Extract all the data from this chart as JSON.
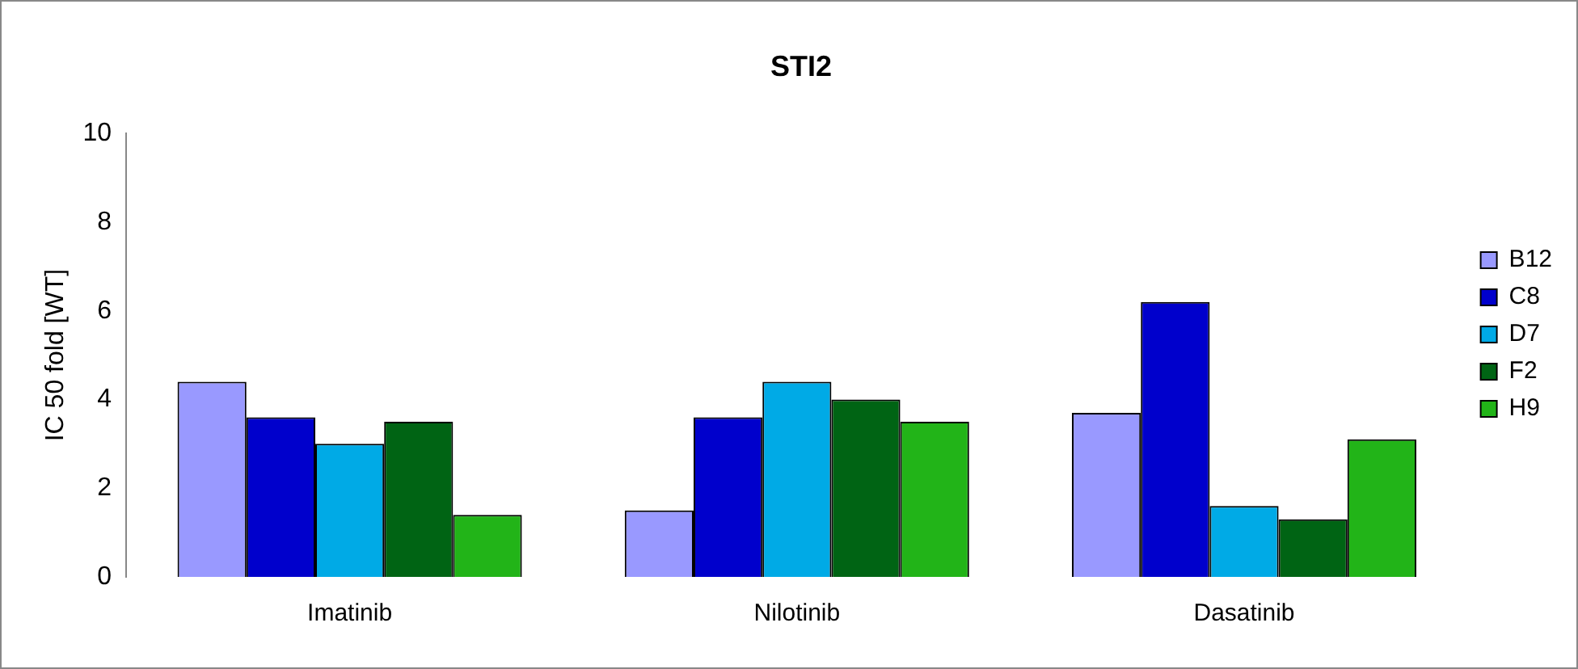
{
  "chart_data": {
    "type": "bar",
    "title": "STI2",
    "ylabel": "IC 50 fold [WT]",
    "categories": [
      "Imatinib",
      "Nilotinib",
      "Dasatinib"
    ],
    "series": [
      {
        "name": "B12",
        "color": "#9999ff",
        "values": [
          4.4,
          1.5,
          3.7
        ]
      },
      {
        "name": "C8",
        "color": "#0000cc",
        "values": [
          3.6,
          3.6,
          6.2
        ]
      },
      {
        "name": "D7",
        "color": "#00aae6",
        "values": [
          3.0,
          4.4,
          1.6
        ]
      },
      {
        "name": "F2",
        "color": "#006414",
        "values": [
          3.5,
          4.0,
          1.3
        ]
      },
      {
        "name": "H9",
        "color": "#22b418",
        "values": [
          1.4,
          3.5,
          3.1
        ]
      }
    ],
    "ylim": [
      0,
      10
    ],
    "yticks": [
      0,
      2,
      4,
      6,
      8,
      10
    ],
    "grid": false,
    "legend": "right"
  }
}
